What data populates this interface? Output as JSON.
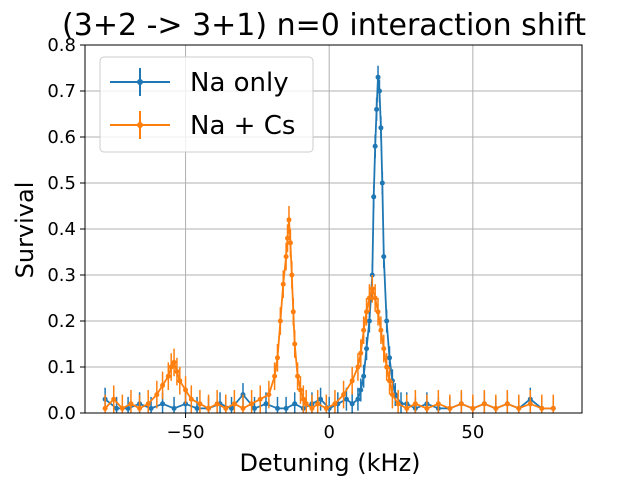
{
  "chart_data": {
    "type": "line",
    "title": "(3+2 -> 3+1) n=0 interaction shift",
    "xlabel": "Detuning (kHz)",
    "ylabel": "Survival",
    "xlim": [
      -85,
      88
    ],
    "ylim": [
      0,
      0.8
    ],
    "xticks": [
      -50,
      0,
      50
    ],
    "yticks": [
      0.0,
      0.1,
      0.2,
      0.3,
      0.4,
      0.5,
      0.6,
      0.7,
      0.8
    ],
    "grid": true,
    "legend_position": "top-left",
    "series": [
      {
        "name": "Na only",
        "color": "#1f77b4",
        "err": 0.025,
        "x": [
          -78,
          -74,
          -70,
          -66,
          -62,
          -58,
          -54,
          -50,
          -46,
          -42,
          -38,
          -34,
          -30,
          -26,
          -22,
          -18,
          -15,
          -12,
          -9,
          -6,
          -3,
          0,
          3,
          6,
          8,
          10,
          11,
          12,
          13,
          14,
          15,
          15.5,
          16,
          16.5,
          17,
          17.5,
          18,
          18.5,
          19,
          20,
          21,
          22,
          23,
          25,
          27,
          30,
          34,
          38,
          42,
          46,
          50,
          54,
          58,
          62,
          66,
          70,
          74,
          78
        ],
        "y": [
          0.03,
          0.01,
          0.01,
          0.02,
          0.01,
          0.02,
          0.01,
          0.02,
          0.01,
          0.01,
          0.02,
          0.01,
          0.04,
          0.01,
          0.02,
          0.01,
          0.01,
          0.02,
          0.01,
          0.02,
          0.03,
          0.01,
          0.02,
          0.03,
          0.02,
          0.03,
          0.05,
          0.08,
          0.14,
          0.2,
          0.3,
          0.47,
          0.58,
          0.66,
          0.73,
          0.7,
          0.62,
          0.5,
          0.34,
          0.2,
          0.12,
          0.07,
          0.04,
          0.02,
          0.02,
          0.01,
          0.02,
          0.01,
          0.01,
          0.02,
          0.01,
          0.02,
          0.01,
          0.02,
          0.01,
          0.03,
          0.01,
          0.01
        ]
      },
      {
        "name": "Na + Cs",
        "color": "#ff7f0e",
        "err": 0.03,
        "x": [
          -78,
          -75,
          -72,
          -69,
          -66,
          -63,
          -60,
          -58,
          -56,
          -55,
          -54,
          -53,
          -52,
          -50,
          -48,
          -45,
          -42,
          -39,
          -36,
          -33,
          -30,
          -27,
          -24,
          -21,
          -19,
          -18,
          -17,
          -16,
          -15,
          -14.5,
          -14,
          -13.5,
          -13,
          -12.5,
          -12,
          -11,
          -10,
          -9,
          -8,
          -6,
          -4,
          -1,
          2,
          5,
          8,
          10,
          11,
          12,
          13,
          14,
          15,
          16,
          17,
          18,
          19,
          20,
          21,
          22,
          24,
          27,
          30,
          34,
          38,
          42,
          46,
          50,
          54,
          58,
          62,
          66,
          70,
          74,
          78
        ],
        "y": [
          0.01,
          0.03,
          0.01,
          0.02,
          0.01,
          0.02,
          0.04,
          0.06,
          0.08,
          0.1,
          0.11,
          0.09,
          0.07,
          0.05,
          0.03,
          0.02,
          0.01,
          0.02,
          0.01,
          0.02,
          0.01,
          0.02,
          0.03,
          0.04,
          0.08,
          0.12,
          0.2,
          0.28,
          0.34,
          0.38,
          0.42,
          0.37,
          0.3,
          0.22,
          0.15,
          0.08,
          0.05,
          0.03,
          0.02,
          0.01,
          0.02,
          0.01,
          0.02,
          0.04,
          0.07,
          0.1,
          0.13,
          0.18,
          0.22,
          0.25,
          0.27,
          0.25,
          0.22,
          0.18,
          0.14,
          0.1,
          0.07,
          0.04,
          0.02,
          0.01,
          0.02,
          0.01,
          0.02,
          0.01,
          0.02,
          0.01,
          0.02,
          0.01,
          0.02,
          0.01,
          0.02,
          0.01,
          0.01
        ]
      }
    ]
  }
}
